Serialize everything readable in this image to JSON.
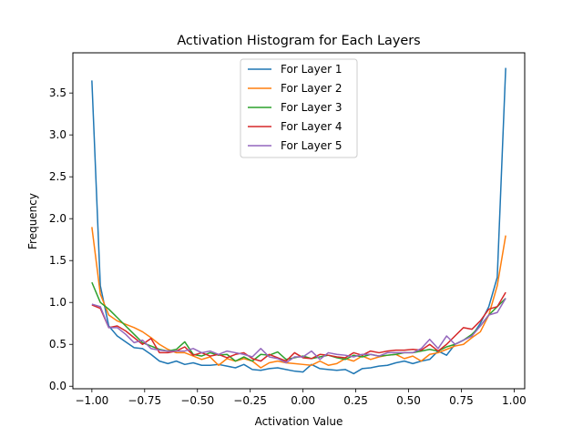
{
  "chart_data": {
    "type": "line",
    "title": "Activation Histogram for Each Layers",
    "xlabel": "Activation Value",
    "ylabel": "Frequency",
    "xlim": [
      -1.09,
      1.05
    ],
    "ylim": [
      -0.03,
      3.98
    ],
    "xticks": [
      -1.0,
      -0.75,
      -0.5,
      -0.25,
      0.0,
      0.25,
      0.5,
      0.75,
      1.0
    ],
    "xtick_labels": [
      "−1.00",
      "−0.75",
      "−0.50",
      "−0.25",
      "0.00",
      "0.25",
      "0.50",
      "0.75",
      "1.00"
    ],
    "yticks": [
      0.0,
      0.5,
      1.0,
      1.5,
      2.0,
      2.5,
      3.0,
      3.5
    ],
    "ytick_labels": [
      "0.0",
      "0.5",
      "1.0",
      "1.5",
      "2.0",
      "2.5",
      "3.0",
      "3.5"
    ],
    "grid": false,
    "legend_position": "upper-center",
    "x": [
      -1.0,
      -0.96,
      -0.92,
      -0.88,
      -0.84,
      -0.8,
      -0.76,
      -0.72,
      -0.68,
      -0.64,
      -0.6,
      -0.56,
      -0.52,
      -0.48,
      -0.44,
      -0.4,
      -0.36,
      -0.32,
      -0.28,
      -0.24,
      -0.2,
      -0.16,
      -0.12,
      -0.08,
      -0.04,
      0.0,
      0.04,
      0.08,
      0.12,
      0.16,
      0.2,
      0.24,
      0.28,
      0.32,
      0.36,
      0.4,
      0.44,
      0.48,
      0.52,
      0.56,
      0.6,
      0.64,
      0.68,
      0.72,
      0.76,
      0.8,
      0.84,
      0.88,
      0.92,
      0.96
    ],
    "series": [
      {
        "name": "For Layer 1",
        "color": "#1f77b4",
        "values": [
          3.65,
          1.2,
          0.72,
          0.6,
          0.53,
          0.46,
          0.45,
          0.38,
          0.3,
          0.27,
          0.3,
          0.26,
          0.28,
          0.25,
          0.25,
          0.26,
          0.24,
          0.22,
          0.26,
          0.2,
          0.19,
          0.21,
          0.22,
          0.2,
          0.18,
          0.17,
          0.26,
          0.21,
          0.2,
          0.19,
          0.2,
          0.15,
          0.21,
          0.22,
          0.24,
          0.25,
          0.28,
          0.3,
          0.27,
          0.3,
          0.32,
          0.42,
          0.37,
          0.5,
          0.55,
          0.6,
          0.75,
          0.95,
          1.3,
          3.8
        ]
      },
      {
        "name": "For Layer 2",
        "color": "#ff7f0e",
        "values": [
          1.9,
          1.1,
          0.85,
          0.78,
          0.74,
          0.7,
          0.65,
          0.58,
          0.5,
          0.44,
          0.4,
          0.4,
          0.36,
          0.32,
          0.35,
          0.25,
          0.33,
          0.3,
          0.33,
          0.3,
          0.22,
          0.28,
          0.3,
          0.28,
          0.27,
          0.26,
          0.25,
          0.3,
          0.25,
          0.27,
          0.33,
          0.3,
          0.36,
          0.32,
          0.35,
          0.37,
          0.38,
          0.33,
          0.36,
          0.3,
          0.38,
          0.4,
          0.44,
          0.48,
          0.5,
          0.58,
          0.65,
          0.85,
          1.2,
          1.8
        ]
      },
      {
        "name": "For Layer 3",
        "color": "#2ca02c",
        "values": [
          1.24,
          1.0,
          0.92,
          0.82,
          0.72,
          0.62,
          0.52,
          0.48,
          0.44,
          0.42,
          0.44,
          0.53,
          0.38,
          0.36,
          0.4,
          0.37,
          0.38,
          0.3,
          0.35,
          0.3,
          0.38,
          0.37,
          0.41,
          0.32,
          0.34,
          0.36,
          0.33,
          0.35,
          0.37,
          0.34,
          0.32,
          0.37,
          0.35,
          0.38,
          0.36,
          0.37,
          0.38,
          0.4,
          0.4,
          0.42,
          0.44,
          0.42,
          0.47,
          0.5,
          0.55,
          0.62,
          0.72,
          0.85,
          0.95,
          1.05
        ]
      },
      {
        "name": "For Layer 4",
        "color": "#d62728",
        "values": [
          0.97,
          0.93,
          0.7,
          0.72,
          0.66,
          0.58,
          0.5,
          0.57,
          0.4,
          0.4,
          0.42,
          0.47,
          0.37,
          0.4,
          0.36,
          0.38,
          0.34,
          0.38,
          0.4,
          0.33,
          0.3,
          0.38,
          0.34,
          0.3,
          0.4,
          0.34,
          0.33,
          0.38,
          0.37,
          0.35,
          0.34,
          0.4,
          0.37,
          0.42,
          0.4,
          0.42,
          0.43,
          0.43,
          0.44,
          0.43,
          0.5,
          0.42,
          0.5,
          0.6,
          0.7,
          0.68,
          0.78,
          0.92,
          0.95,
          1.12
        ]
      },
      {
        "name": "For Layer 5",
        "color": "#9467bd",
        "values": [
          0.98,
          0.95,
          0.7,
          0.7,
          0.62,
          0.52,
          0.55,
          0.45,
          0.43,
          0.42,
          0.42,
          0.42,
          0.45,
          0.4,
          0.42,
          0.38,
          0.42,
          0.4,
          0.38,
          0.35,
          0.45,
          0.35,
          0.33,
          0.28,
          0.35,
          0.35,
          0.42,
          0.32,
          0.4,
          0.38,
          0.37,
          0.35,
          0.38,
          0.38,
          0.36,
          0.4,
          0.4,
          0.4,
          0.4,
          0.45,
          0.56,
          0.45,
          0.6,
          0.5,
          0.55,
          0.6,
          0.72,
          0.85,
          0.88,
          1.05
        ]
      }
    ]
  }
}
